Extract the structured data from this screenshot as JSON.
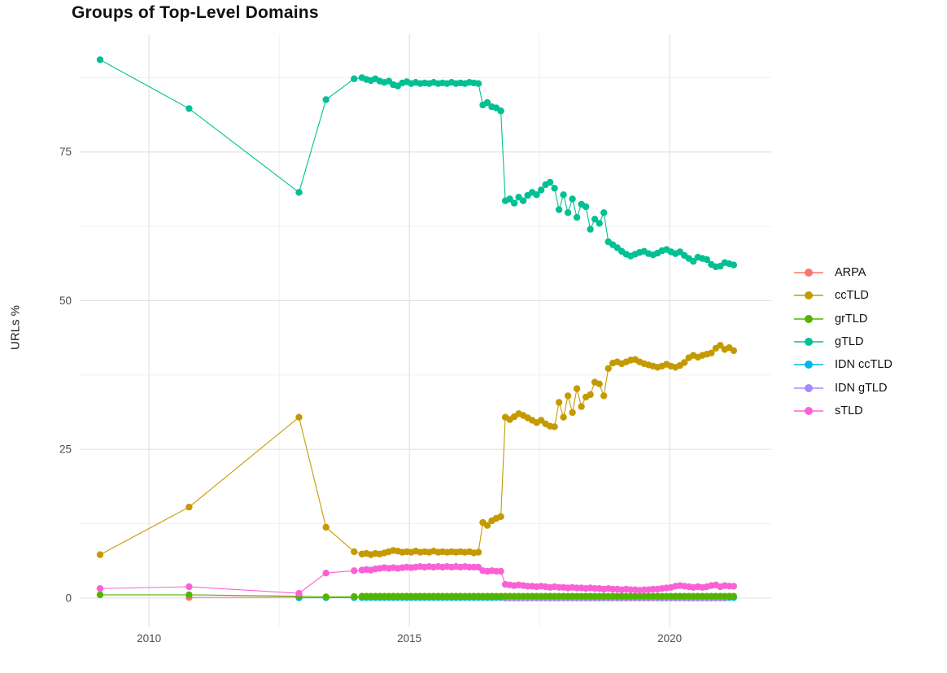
{
  "chart_data": {
    "type": "line",
    "title": "Groups of Top-Level Domains",
    "xlabel": "",
    "ylabel": "URLs %",
    "x_ticks": [
      2010,
      2015,
      2020
    ],
    "x_minor_ticks": [
      2012.5,
      2017.5
    ],
    "y_ticks": [
      0,
      25,
      50,
      75
    ],
    "y_minor_ticks": [
      12.5,
      37.5,
      62.5,
      87.5
    ],
    "x_domain": [
      2008.67,
      2021.95
    ],
    "y_domain": [
      -4.8,
      94.8
    ],
    "grid": "on",
    "legend_position": "right",
    "draw_order": [
      "ARPA",
      "IDN ccTLD",
      "IDN gTLD",
      "grTLD",
      "gTLD",
      "ccTLD",
      "sTLD"
    ],
    "series": [
      {
        "name": "ARPA",
        "color": "#F8766D",
        "points": [
          [
            2010.77,
            0.1
          ],
          [
            2012.88,
            0.15
          ]
        ]
      },
      {
        "name": "ccTLD",
        "color": "#C49A00",
        "points": [
          [
            2009.06,
            7.3
          ],
          [
            2010.77,
            15.3
          ],
          [
            2012.88,
            30.4
          ],
          [
            2013.4,
            11.9
          ],
          [
            2013.94,
            7.8
          ]
        ],
        "dense": {
          "x0": 2014.09,
          "dx": 0.086,
          "values": [
            7.4,
            7.5,
            7.3,
            7.5,
            7.4,
            7.6,
            7.8,
            8.0,
            7.9,
            7.7,
            7.8,
            7.7,
            7.9,
            7.7,
            7.8,
            7.7,
            7.9,
            7.7,
            7.8,
            7.7,
            7.8,
            7.7,
            7.8,
            7.7,
            7.8,
            7.6,
            7.7,
            12.7,
            12.2,
            13.0,
            13.4,
            13.7,
            30.4,
            30.0,
            30.5,
            31.0,
            30.7,
            30.3,
            29.9,
            29.5,
            29.9,
            29.3,
            28.9,
            28.8,
            32.9,
            30.4,
            34.0,
            31.2,
            35.2,
            32.2,
            33.8,
            34.2,
            36.3,
            36.0,
            34.0,
            38.6,
            39.5,
            39.7,
            39.4,
            39.7,
            40.0,
            40.1,
            39.7,
            39.4,
            39.2,
            39.0,
            38.8,
            39.0,
            39.3,
            39.0,
            38.8,
            39.1,
            39.6,
            40.4,
            40.8,
            40.5,
            40.8,
            41.0,
            41.2,
            42.0,
            42.5,
            41.8,
            42.1,
            41.6
          ]
        }
      },
      {
        "name": "grTLD",
        "color": "#53B400",
        "points": [
          [
            2009.06,
            0.55
          ],
          [
            2010.77,
            0.55
          ],
          [
            2012.88,
            0.3
          ],
          [
            2013.4,
            0.2
          ],
          [
            2013.94,
            0.25
          ]
        ],
        "dense": {
          "x0": 2014.09,
          "dx": 0.086,
          "n": 84,
          "value": 0.3
        }
      },
      {
        "name": "gTLD",
        "color": "#00C094",
        "points": [
          [
            2009.06,
            90.5
          ],
          [
            2010.77,
            82.3
          ],
          [
            2012.88,
            68.2
          ],
          [
            2013.4,
            83.8
          ],
          [
            2013.94,
            87.3
          ]
        ],
        "dense": {
          "x0": 2014.09,
          "dx": 0.086,
          "values": [
            87.5,
            87.2,
            87.0,
            87.3,
            86.9,
            86.7,
            86.9,
            86.3,
            86.1,
            86.6,
            86.8,
            86.5,
            86.7,
            86.5,
            86.6,
            86.5,
            86.7,
            86.5,
            86.6,
            86.5,
            86.7,
            86.5,
            86.6,
            86.5,
            86.7,
            86.6,
            86.5,
            82.9,
            83.3,
            82.6,
            82.4,
            81.9,
            66.8,
            67.1,
            66.4,
            67.4,
            66.8,
            67.7,
            68.2,
            67.8,
            68.6,
            69.5,
            69.9,
            68.9,
            65.3,
            67.8,
            64.8,
            67.1,
            64.0,
            66.2,
            65.8,
            62.0,
            63.7,
            63.0,
            64.8,
            59.9,
            59.4,
            58.9,
            58.3,
            57.8,
            57.5,
            57.8,
            58.1,
            58.3,
            57.9,
            57.7,
            58.0,
            58.4,
            58.6,
            58.2,
            57.9,
            58.2,
            57.6,
            57.1,
            56.6,
            57.3,
            57.1,
            56.9,
            56.1,
            55.7,
            55.8,
            56.4,
            56.2,
            56.0
          ]
        }
      },
      {
        "name": "IDN ccTLD",
        "color": "#00B6EB",
        "points": [
          [
            2012.88,
            0.05
          ],
          [
            2013.4,
            0.07
          ],
          [
            2013.94,
            0.07
          ]
        ],
        "dense": {
          "x0": 2014.09,
          "dx": 0.086,
          "n": 84,
          "value": 0.08
        }
      },
      {
        "name": "IDN gTLD",
        "color": "#A58AFF",
        "points": [],
        "dense": {
          "x0": 2016.84,
          "dx": 0.086,
          "n": 50,
          "value": 0.0
        }
      },
      {
        "name": "sTLD",
        "color": "#FB61D7",
        "points": [
          [
            2009.06,
            1.6
          ],
          [
            2010.77,
            1.9
          ],
          [
            2012.88,
            0.8
          ],
          [
            2013.4,
            4.2
          ],
          [
            2013.94,
            4.6
          ]
        ],
        "dense": {
          "x0": 2014.09,
          "dx": 0.086,
          "values": [
            4.7,
            4.8,
            4.7,
            4.9,
            5.0,
            5.1,
            5.0,
            5.1,
            5.0,
            5.1,
            5.2,
            5.1,
            5.2,
            5.3,
            5.2,
            5.3,
            5.2,
            5.3,
            5.2,
            5.3,
            5.2,
            5.3,
            5.2,
            5.3,
            5.2,
            5.2,
            5.2,
            4.6,
            4.5,
            4.6,
            4.5,
            4.5,
            2.3,
            2.2,
            2.1,
            2.2,
            2.1,
            2.0,
            2.0,
            1.9,
            2.0,
            1.9,
            1.8,
            1.9,
            1.8,
            1.8,
            1.7,
            1.8,
            1.7,
            1.7,
            1.6,
            1.7,
            1.6,
            1.6,
            1.5,
            1.6,
            1.5,
            1.5,
            1.4,
            1.5,
            1.4,
            1.4,
            1.3,
            1.4,
            1.4,
            1.5,
            1.5,
            1.6,
            1.7,
            1.8,
            2.0,
            2.1,
            2.0,
            1.9,
            1.8,
            1.9,
            1.8,
            1.9,
            2.1,
            2.2,
            1.9,
            2.1,
            2.0,
            2.0
          ]
        }
      }
    ],
    "style": {
      "grid_major_color": "#e3e3e3",
      "grid_minor_color": "#f0f0f0",
      "tick_label_color": "#4d4d4d",
      "point_radius": 4.2,
      "line_width": 1.1
    }
  },
  "legend": {
    "items": [
      {
        "label": "ARPA",
        "color": "#F8766D"
      },
      {
        "label": "ccTLD",
        "color": "#C49A00"
      },
      {
        "label": "grTLD",
        "color": "#53B400"
      },
      {
        "label": "gTLD",
        "color": "#00C094"
      },
      {
        "label": "IDN ccTLD",
        "color": "#00B6EB"
      },
      {
        "label": "IDN gTLD",
        "color": "#A58AFF"
      },
      {
        "label": "sTLD",
        "color": "#FB61D7"
      }
    ]
  }
}
